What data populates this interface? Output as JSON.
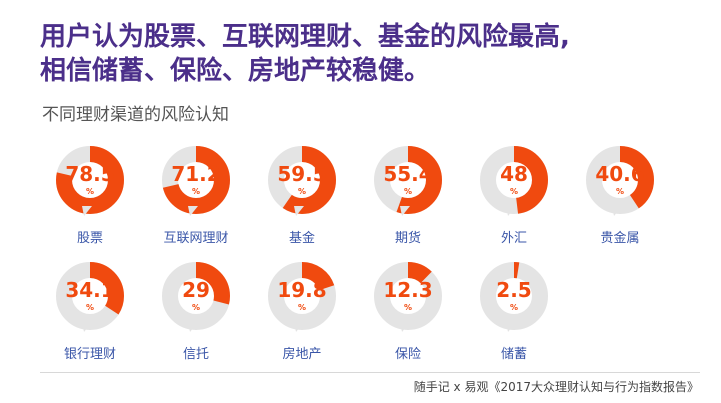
{
  "headline": {
    "line1": "用户认为股票、互联网理财、基金的风险最高,",
    "line2": "相信储蓄、保险、房地产较稳健。"
  },
  "source": "随手记 x 易观《2017大众理财认知与行为指数报告》",
  "colors": {
    "accent": "#f04a0f",
    "track": "#e4e4e4",
    "title": "#4b2f8a",
    "label": "#3a56a8"
  },
  "chart_data": {
    "type": "radial-progress",
    "title": "不同理财渠道的风险认知",
    "unit": "%",
    "ylim": [
      0,
      100
    ],
    "categories": [
      "股票",
      "互联网理财",
      "基金",
      "期货",
      "外汇",
      "贵金属",
      "银行理财",
      "信托",
      "房地产",
      "保险",
      "储蓄"
    ],
    "values": [
      "78.5",
      "71.2",
      "59.5",
      "55.4",
      "48",
      "40.6",
      "34.1",
      "29",
      "19.8",
      "12.3",
      "2.5"
    ]
  }
}
